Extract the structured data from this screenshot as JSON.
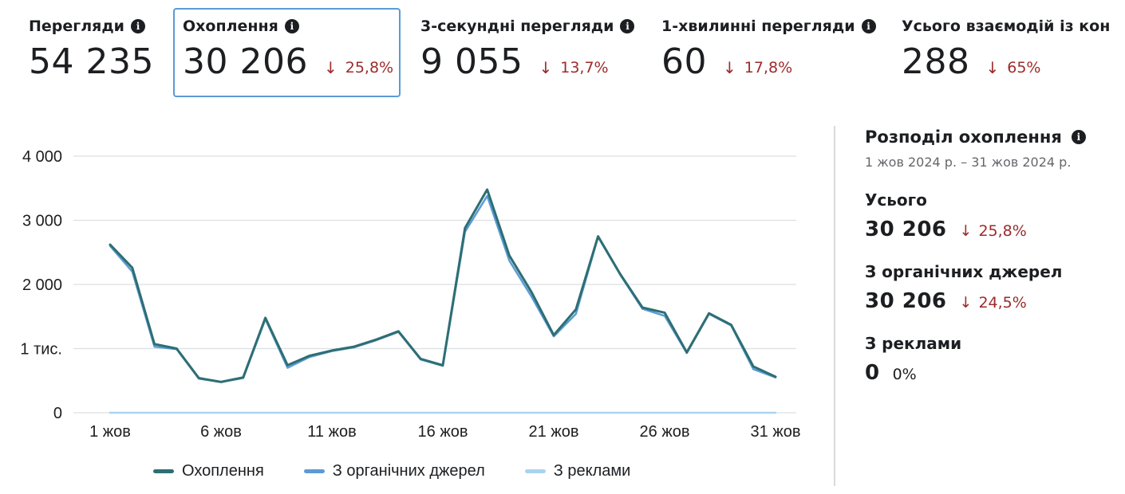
{
  "metrics": [
    {
      "title": "Перегляди",
      "value": "54 235",
      "delta": ""
    },
    {
      "title": "Охоплення",
      "value": "30 206",
      "delta": "25,8%"
    },
    {
      "title": "3-секундні перегляди",
      "value": "9 055",
      "delta": "13,7%"
    },
    {
      "title": "1-хвилинні перегляди",
      "value": "60",
      "delta": "17,8%"
    },
    {
      "title": "Усього взаємодій із кон",
      "value": "288",
      "delta": "65%"
    }
  ],
  "panel": {
    "title": "Розподіл охоплення",
    "range": "1 жов 2024 р. – 31 жов 2024 р.",
    "sections": [
      {
        "label": "Усього",
        "value": "30 206",
        "delta": "25,8%"
      },
      {
        "label": "З органічних джерел",
        "value": "30 206",
        "delta": "24,5%"
      },
      {
        "label": "З реклами",
        "value": "0",
        "delta": "0%"
      }
    ]
  },
  "colors": {
    "reach": "#2e6e73",
    "organic": "#5b9bd5",
    "ads": "#a8d4f0",
    "negative": "#9c2b2b"
  },
  "chart_data": {
    "type": "line",
    "x": [
      1,
      2,
      3,
      4,
      5,
      6,
      7,
      8,
      9,
      10,
      11,
      12,
      13,
      14,
      15,
      16,
      17,
      18,
      19,
      20,
      21,
      22,
      23,
      24,
      25,
      26,
      27,
      28,
      29,
      30,
      31
    ],
    "x_tick_values": [
      1,
      6,
      11,
      16,
      21,
      26,
      31
    ],
    "x_tick_labels": [
      "1 жов",
      "6 жов",
      "11 жов",
      "16 жов",
      "21 жов",
      "26 жов",
      "31 жов"
    ],
    "y_tick_values": [
      0,
      1000,
      2000,
      3000,
      4000
    ],
    "y_tick_labels": [
      "0",
      "1 тис.",
      "2 000",
      "3 000",
      "4 000"
    ],
    "ylim": [
      0,
      4000
    ],
    "grid": true,
    "legend_position": "bottom",
    "series": [
      {
        "name": "Охоплення",
        "color": "#2e6e73",
        "values": [
          2620,
          2260,
          1070,
          1000,
          540,
          480,
          550,
          1480,
          740,
          890,
          970,
          1030,
          1140,
          1270,
          840,
          740,
          2880,
          3480,
          2450,
          1880,
          1210,
          1610,
          2750,
          2160,
          1640,
          1560,
          940,
          1550,
          1370,
          720,
          560
        ]
      },
      {
        "name": "З органічних джерел",
        "color": "#5b9bd5",
        "values": [
          2600,
          2200,
          1030,
          990,
          530,
          480,
          540,
          1460,
          700,
          870,
          960,
          1020,
          1130,
          1260,
          830,
          730,
          2820,
          3380,
          2370,
          1810,
          1190,
          1540,
          2740,
          2150,
          1620,
          1510,
          930,
          1540,
          1360,
          680,
          550
        ]
      },
      {
        "name": "З реклами",
        "color": "#a8d4f0",
        "values": [
          0,
          0,
          0,
          0,
          0,
          0,
          0,
          0,
          0,
          0,
          0,
          0,
          0,
          0,
          0,
          0,
          0,
          0,
          0,
          0,
          0,
          0,
          0,
          0,
          0,
          0,
          0,
          0,
          0,
          0,
          0
        ]
      }
    ]
  }
}
